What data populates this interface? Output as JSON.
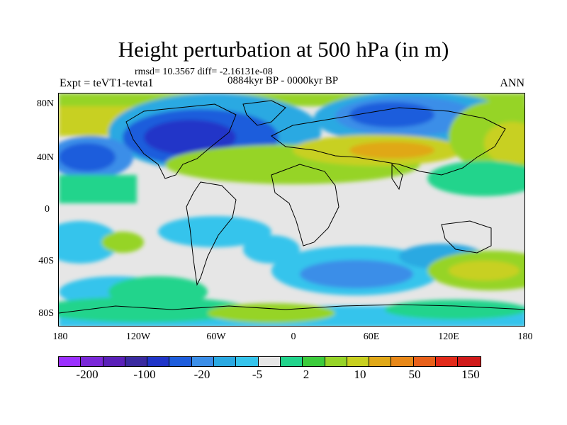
{
  "title": "Height perturbation at 500 hPa (in m)",
  "stats": "rmsd= 10.3567 diff= -2.16131e-08",
  "subtitle_left": "Expt = teVT1-tevta1",
  "subtitle_center": "0884kyr BP - 0000kyr BP",
  "subtitle_right": "ANN",
  "y_ticks": [
    "80N",
    "40N",
    "0",
    "40S",
    "80S"
  ],
  "x_ticks": [
    "180",
    "120W",
    "60W",
    "0",
    "60E",
    "120E",
    "180"
  ],
  "colorbar": {
    "colors": [
      "#9b30ff",
      "#7a28d8",
      "#5a20b8",
      "#3a2aa0",
      "#2035c8",
      "#1e5ddc",
      "#3b8ee8",
      "#2aa9e2",
      "#36c4ec",
      "#e6e6e6",
      "#22d48c",
      "#3ccc3c",
      "#96d428",
      "#c8d020",
      "#e0a818",
      "#e88818",
      "#e8601a",
      "#e22a1a",
      "#d01a1a"
    ],
    "labels": [
      "-200",
      "-100",
      "-20",
      "-5",
      "2",
      "10",
      "50",
      "150"
    ]
  }
}
